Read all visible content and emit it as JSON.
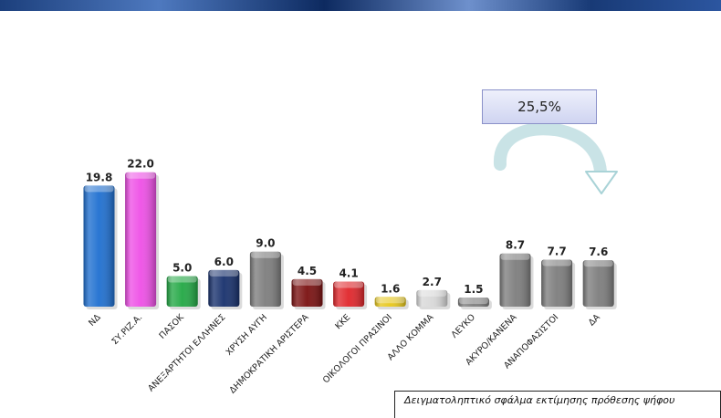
{
  "chart_data": {
    "type": "bar",
    "categories": [
      "ΝΔ",
      "ΣΥ.ΡΙΖ.Α.",
      "ΠΑΣΟΚ",
      "ΑΝΕΞΑΡΤΗΤΟΙ ΕΛΛΗΝΕΣ",
      "ΧΡΥΣΗ ΑΥΓΗ",
      "ΔΗΜΟΚΡΑΤΙΚΗ ΑΡΙΣΤΕΡΑ",
      "ΚΚΕ",
      "ΟΙΚΟΛΟΓΟΙ ΠΡΑΣΙΝΟΙ",
      "ΑΛΛΟ ΚΟΜΜΑ",
      "ΛΕΥΚΟ",
      "ΑΚΥΡΟ/ΚΑΝΕΝΑ",
      "ΑΝΑΠΟΦΑΣΙΣΤΟΙ",
      "ΔΑ"
    ],
    "values": [
      19.8,
      22.0,
      5.0,
      6.0,
      9.0,
      4.5,
      4.1,
      1.6,
      2.7,
      1.5,
      8.7,
      7.7,
      7.6
    ],
    "value_labels": [
      "19.8",
      "22.0",
      "5.0",
      "6.0",
      "9.0",
      "4.5",
      "4.1",
      "1.6",
      "2.7",
      "1.5",
      "8.7",
      "7.7",
      "7.6"
    ],
    "colors": [
      "#1e6fd0",
      "#ee4fe6",
      "#22a844",
      "#17306c",
      "#7d7d7d",
      "#7a1010",
      "#e0252a",
      "#e7c71b",
      "#d8d8d8",
      "#7d7d7d",
      "#7d7d7d",
      "#7d7d7d",
      "#7d7d7d"
    ],
    "title": "",
    "xlabel": "",
    "ylabel": "",
    "ylim": [
      0,
      23
    ],
    "grid": false,
    "annotation": {
      "text": "25,5%",
      "color": "#c6e1e3"
    }
  },
  "footnote": "Δειγματοληπτικό σφάλμα εκτίμησης πρόθεσης ψήφου"
}
